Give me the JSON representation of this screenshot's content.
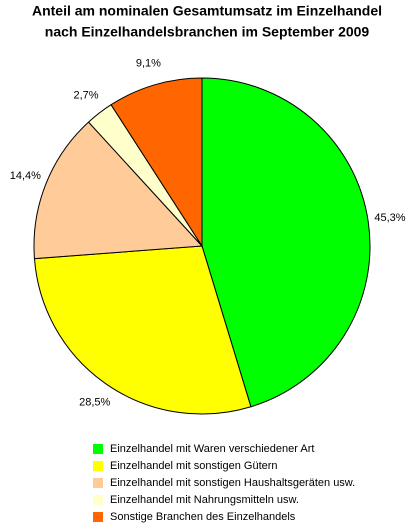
{
  "chart_data": {
    "type": "pie",
    "title": [
      "Anteil am nominalen Gesamtumsatz im Einzelhandel",
      "nach Einzelhandelsbranchen im September 2009"
    ],
    "categories": [
      "Einzelhandel mit Waren verschiedener Art",
      "Einzelhandel mit sonstigen Gütern",
      "Einzelhandel mit sonstigen Haushaltsgeräten usw.",
      "Einzelhandel mit Nahrungsmitteln usw.",
      "Sonstige Branchen des Einzelhandels"
    ],
    "values": [
      45.3,
      28.5,
      14.4,
      2.7,
      9.1
    ],
    "value_labels": [
      "45,3%",
      "28,5%",
      "14,4%",
      "2,7%",
      "9,1%"
    ],
    "colors": [
      "#00ff00",
      "#ffff00",
      "#ffcc99",
      "#ffffcc",
      "#ff6600"
    ],
    "legend": "bottom"
  }
}
